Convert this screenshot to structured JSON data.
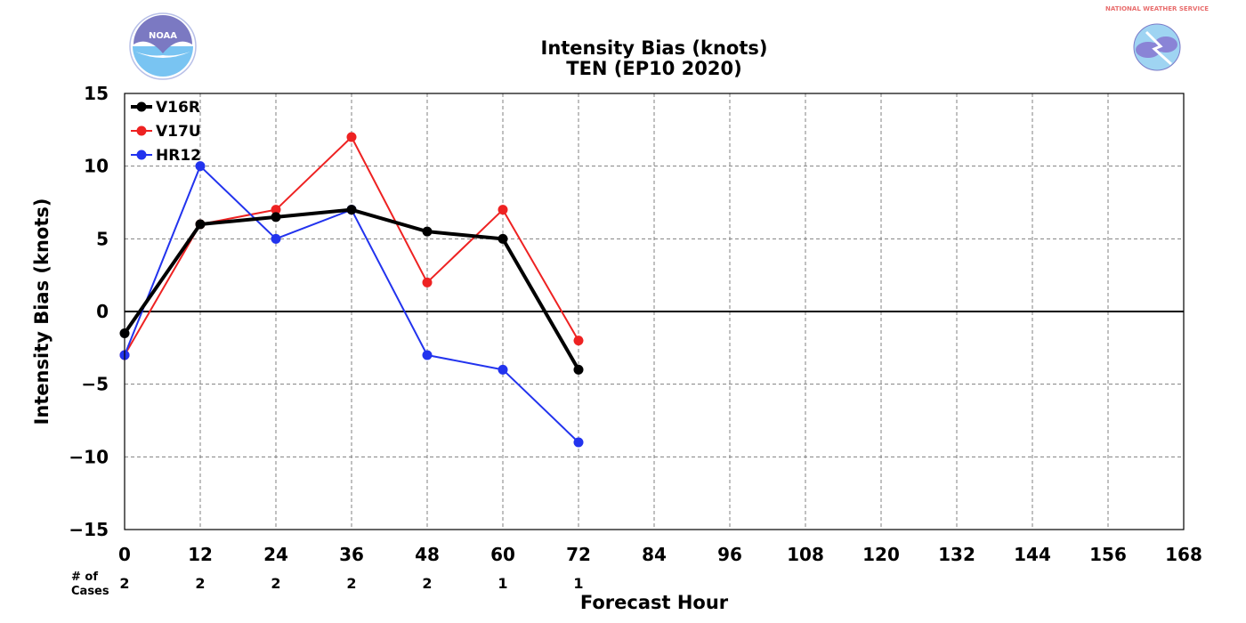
{
  "chart_data": {
    "type": "line",
    "title": "Intensity Bias (knots)",
    "subtitle": "TEN (EP10 2020)",
    "xlabel": "Forecast Hour",
    "ylabel": "Intensity Bias (knots)",
    "x_ticks": [
      0,
      12,
      24,
      36,
      48,
      60,
      72,
      84,
      96,
      108,
      120,
      132,
      144,
      156,
      168
    ],
    "y_ticks": [
      15,
      10,
      5,
      0,
      -5,
      -10,
      -15
    ],
    "y_tick_labels": [
      "15",
      "10",
      "5",
      "0",
      "−5",
      "−10",
      "−15"
    ],
    "xlim": [
      0,
      168
    ],
    "ylim": [
      -15,
      15
    ],
    "grid": true,
    "legend_position": "top-left",
    "series": [
      {
        "name": "V16R",
        "color": "#000000",
        "x": [
          0,
          12,
          24,
          36,
          48,
          60,
          72
        ],
        "values": [
          -1.5,
          6,
          6.5,
          7,
          5.5,
          5,
          -4
        ]
      },
      {
        "name": "V17U",
        "color": "#ee2222",
        "x": [
          0,
          12,
          24,
          36,
          48,
          60,
          72
        ],
        "values": [
          -3,
          6,
          7,
          12,
          2,
          7,
          -2
        ]
      },
      {
        "name": "HR12",
        "color": "#2233ee",
        "x": [
          0,
          12,
          24,
          36,
          48,
          60,
          72
        ],
        "values": [
          -3,
          10,
          5,
          7,
          -3,
          -4,
          -9
        ]
      }
    ],
    "cases_label": [
      "# of",
      "Cases"
    ],
    "cases": [
      {
        "x": 0,
        "n": "2"
      },
      {
        "x": 12,
        "n": "2"
      },
      {
        "x": 24,
        "n": "2"
      },
      {
        "x": 36,
        "n": "2"
      },
      {
        "x": 48,
        "n": "2"
      },
      {
        "x": 60,
        "n": "1"
      },
      {
        "x": 72,
        "n": "1"
      }
    ]
  },
  "logos": {
    "left": {
      "icon": "noaa-logo-icon",
      "text": "NOAA"
    },
    "right": {
      "icon": "nws-logo-icon",
      "text": "NATIONAL WEATHER SERVICE"
    }
  }
}
